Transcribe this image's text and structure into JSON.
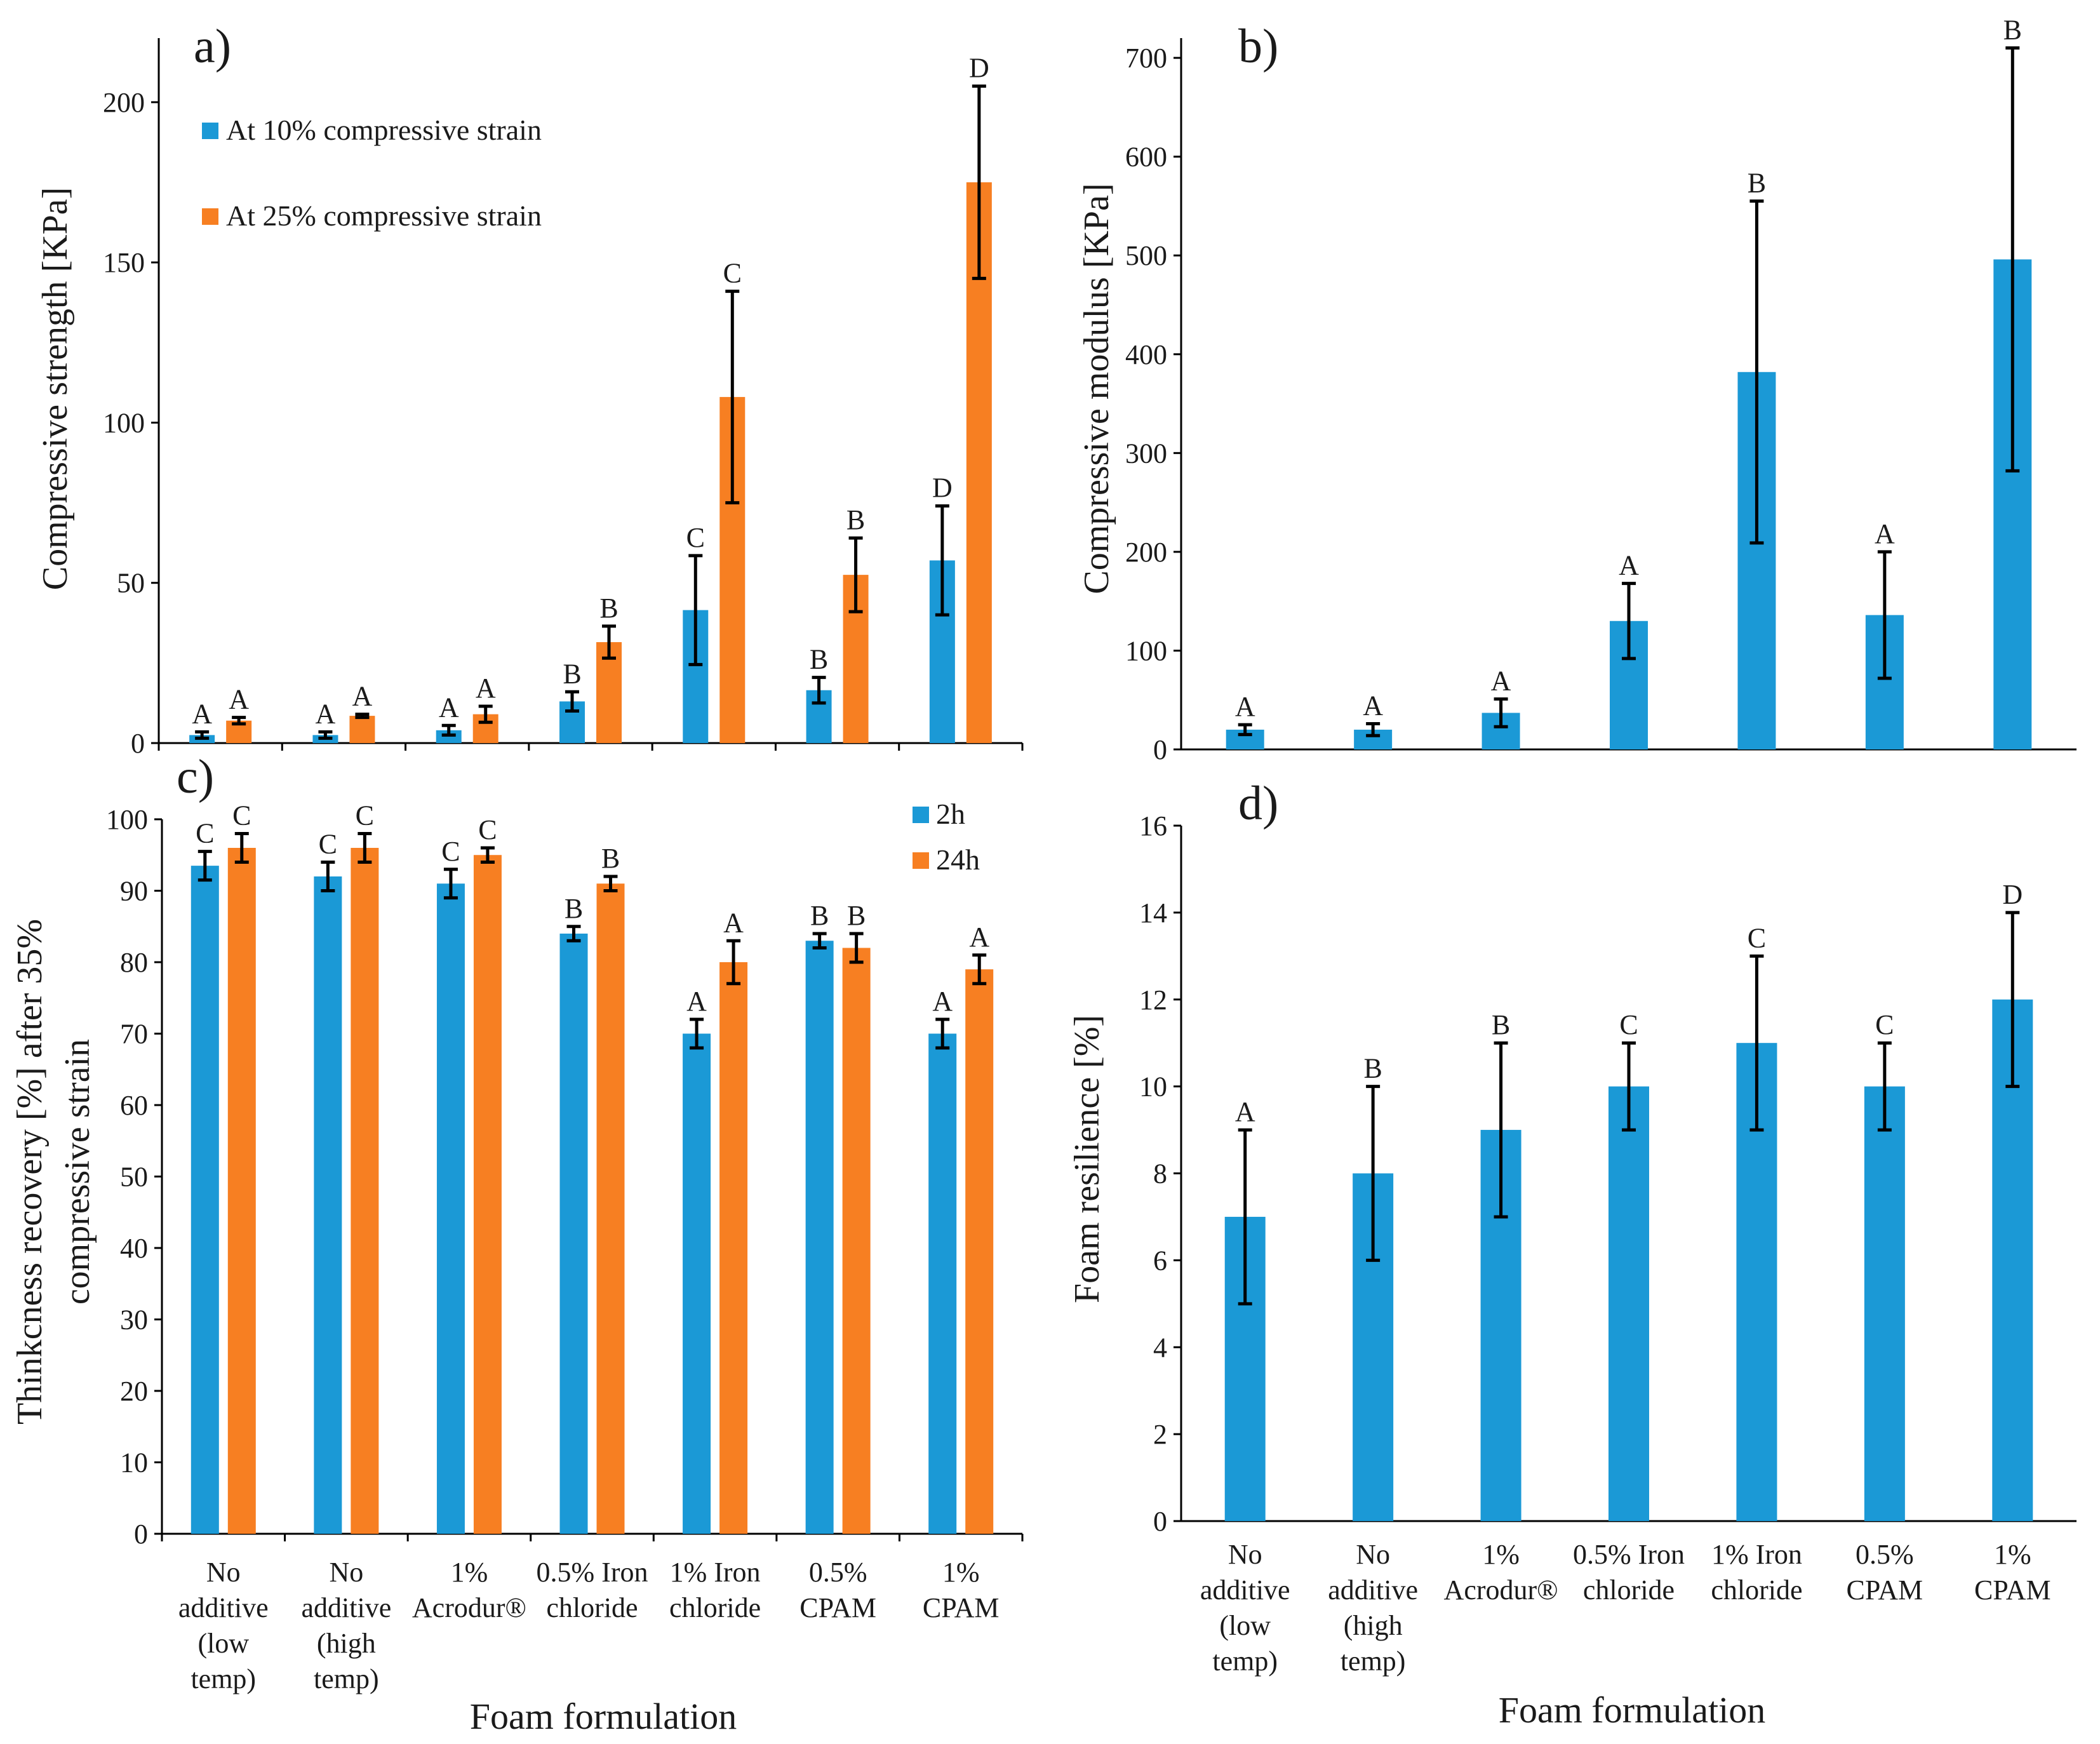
{
  "colors": {
    "blue": "#1B99D6",
    "orange": "#F77F22",
    "axis": "#000000"
  },
  "chart_data": [
    {
      "id": "a",
      "type": "bar",
      "panel_label": "a)",
      "title": "",
      "xlabel": "",
      "ylabel": "Compressive strength [KPa]",
      "ylim": [
        0,
        220
      ],
      "yticks": [
        0,
        50,
        100,
        150,
        200
      ],
      "categories": [
        "No additive (low temp)",
        "No additive (high temp)",
        "1% Acrodur®",
        "0.5% Iron chloride",
        "1% Iron chloride",
        "0.5% CPAM",
        "1% CPAM"
      ],
      "legend_position": "top-left",
      "series": [
        {
          "name": "At 10% compressive strain",
          "color": "#1B99D6",
          "values": [
            2.5,
            2.5,
            4,
            13,
            41.5,
            16.5,
            57
          ],
          "errors": [
            1,
            1,
            1.5,
            3,
            17,
            4,
            17
          ],
          "letters": [
            "A",
            "A",
            "A",
            "B",
            "C",
            "B",
            "D"
          ]
        },
        {
          "name": "At 25% compressive strain",
          "color": "#F77F22",
          "values": [
            7,
            8.5,
            9,
            31.5,
            108,
            52.5,
            175
          ],
          "errors": [
            1,
            0.5,
            2.5,
            5,
            33,
            11.5,
            30
          ],
          "letters": [
            "A",
            "A",
            "A",
            "B",
            "C",
            "B",
            "D"
          ]
        }
      ]
    },
    {
      "id": "b",
      "type": "bar",
      "panel_label": "b)",
      "title": "",
      "xlabel": "",
      "ylabel": "Compressive modulus [KPa]",
      "ylim": [
        0,
        720
      ],
      "yticks": [
        0,
        100,
        200,
        300,
        400,
        500,
        600,
        700
      ],
      "categories": [
        "No additive (low temp)",
        "No additive (high temp)",
        "1% Acrodur®",
        "0.5% Iron chloride",
        "1% Iron chloride",
        "0.5% CPAM",
        "1% CPAM"
      ],
      "series": [
        {
          "name": "Compressive modulus",
          "color": "#1B99D6",
          "values": [
            20,
            20,
            37,
            130,
            382,
            136,
            496
          ],
          "errors": [
            5,
            6,
            14,
            38,
            173,
            64,
            214
          ],
          "letters": [
            "A",
            "A",
            "A",
            "A",
            "B",
            "A",
            "B"
          ]
        }
      ]
    },
    {
      "id": "c",
      "type": "bar",
      "panel_label": "c)",
      "title": "",
      "xlabel": "Foam formulation",
      "ylabel_lines": [
        "Thinkcness recovery [%] after 35%",
        "compressive strain"
      ],
      "ylim": [
        0,
        100
      ],
      "yticks": [
        0,
        10,
        20,
        30,
        40,
        50,
        60,
        70,
        80,
        90,
        100
      ],
      "categories": [
        "No additive (low temp)",
        "No additive (high temp)",
        "1% Acrodur®",
        "0.5% Iron chloride",
        "1% Iron chloride",
        "0.5% CPAM",
        "1% CPAM"
      ],
      "category_lines": [
        [
          "No",
          "additive",
          "(low",
          "temp)"
        ],
        [
          "No",
          "additive",
          "(high",
          "temp)"
        ],
        [
          "1%",
          "Acrodur®"
        ],
        [
          "0.5% Iron",
          "chloride"
        ],
        [
          "1% Iron",
          "chloride"
        ],
        [
          "0.5%",
          "CPAM"
        ],
        [
          "1%",
          "CPAM"
        ]
      ],
      "legend_position": "top-right",
      "series": [
        {
          "name": "2h",
          "color": "#1B99D6",
          "values": [
            93.5,
            92,
            91,
            84,
            70,
            83,
            70
          ],
          "errors": [
            2,
            2,
            2,
            1,
            2,
            1,
            2
          ],
          "letters": [
            "C",
            "C",
            "C",
            "B",
            "A",
            "B",
            "A"
          ]
        },
        {
          "name": "24h",
          "color": "#F77F22",
          "values": [
            96,
            96,
            95,
            91,
            80,
            82,
            79
          ],
          "errors": [
            2,
            2,
            1,
            1,
            3,
            2,
            2
          ],
          "letters": [
            "C",
            "C",
            "C",
            "B",
            "A",
            "B",
            "A"
          ]
        }
      ]
    },
    {
      "id": "d",
      "type": "bar",
      "panel_label": "d)",
      "title": "",
      "xlabel": "Foam formulation",
      "ylabel": "Foam resilience  [%]",
      "ylim": [
        0,
        16
      ],
      "yticks": [
        0,
        2,
        4,
        6,
        8,
        10,
        12,
        14,
        16
      ],
      "categories": [
        "No additive (low temp)",
        "No additive (high temp)",
        "1% Acrodur®",
        "0.5% Iron chloride",
        "1% Iron chloride",
        "0.5% CPAM",
        "1% CPAM"
      ],
      "category_lines": [
        [
          "No",
          "additive",
          "(low",
          "temp)"
        ],
        [
          "No",
          "additive",
          "(high",
          "temp)"
        ],
        [
          "1%",
          "Acrodur®"
        ],
        [
          "0.5% Iron",
          "chloride"
        ],
        [
          "1% Iron",
          "chloride"
        ],
        [
          "0.5%",
          "CPAM"
        ],
        [
          "1%",
          "CPAM"
        ]
      ],
      "series": [
        {
          "name": "Foam resilience",
          "color": "#1B99D6",
          "values": [
            7,
            8,
            9,
            10,
            11,
            10,
            12
          ],
          "errors": [
            2,
            2,
            2,
            1,
            2,
            1,
            2
          ],
          "letters": [
            "A",
            "B",
            "B",
            "C",
            "C",
            "C",
            "D"
          ]
        }
      ]
    }
  ]
}
